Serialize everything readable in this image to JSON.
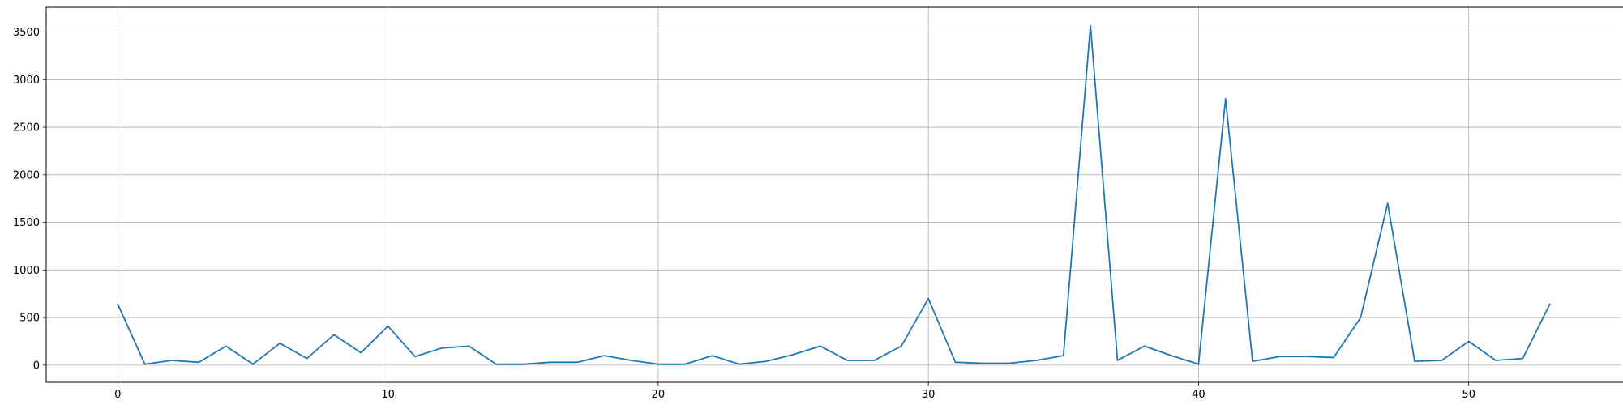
{
  "chart_data": {
    "type": "line",
    "title": "",
    "xlabel": "",
    "ylabel": "",
    "xlim": [
      -2.65,
      55.65
    ],
    "ylim": [
      -180,
      3760
    ],
    "grid": true,
    "legend": "none",
    "colors": {
      "line": "#1f77b4",
      "grid": "#b0b0b0",
      "axis": "#000000"
    },
    "x_ticks": [
      0,
      10,
      20,
      30,
      40,
      50
    ],
    "x_tick_labels": [
      "0",
      "10",
      "20",
      "30",
      "40",
      "50"
    ],
    "y_ticks": [
      0,
      500,
      1000,
      1500,
      2000,
      2500,
      3000,
      3500
    ],
    "y_tick_labels": [
      "0",
      "500",
      "1000",
      "1500",
      "2000",
      "2500",
      "3000",
      "3500"
    ],
    "series": [
      {
        "x": [
          0,
          1,
          2,
          3,
          4,
          5,
          6,
          7,
          8,
          9,
          10,
          11,
          12,
          13,
          14,
          15,
          16,
          17,
          18,
          19,
          20,
          21,
          22,
          23,
          24,
          25,
          26,
          27,
          28,
          29,
          30,
          31,
          32,
          33,
          34,
          35,
          36,
          37,
          38,
          39,
          40,
          41,
          42,
          43,
          44,
          45,
          46,
          47,
          48,
          49,
          50,
          51,
          52,
          53
        ],
        "values": [
          640,
          10,
          50,
          30,
          200,
          10,
          230,
          70,
          320,
          130,
          410,
          90,
          180,
          200,
          10,
          10,
          30,
          30,
          100,
          50,
          10,
          10,
          100,
          10,
          40,
          110,
          200,
          50,
          50,
          200,
          700,
          30,
          20,
          20,
          50,
          100,
          3570,
          50,
          200,
          100,
          10,
          2800,
          40,
          90,
          90,
          80,
          500,
          1700,
          40,
          50,
          250,
          50,
          70,
          640
        ]
      }
    ]
  }
}
